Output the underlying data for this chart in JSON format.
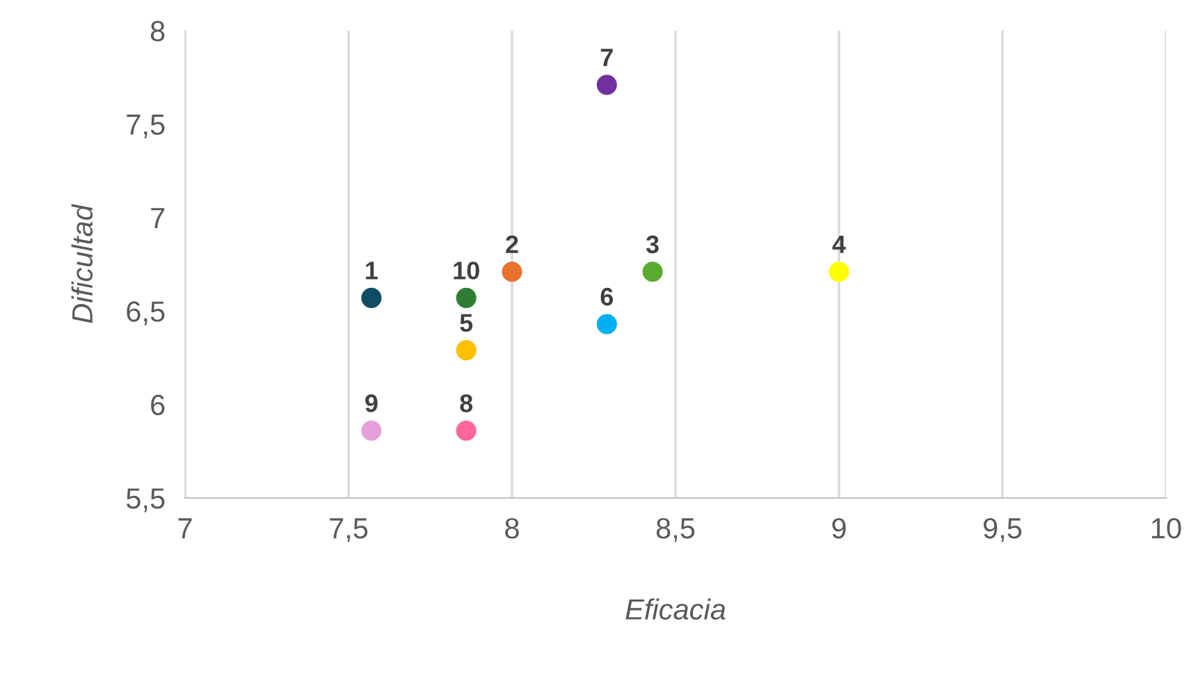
{
  "chart_data": {
    "type": "scatter",
    "xlabel": "Eficacia",
    "ylabel": "Dificultad",
    "series": [
      {
        "name": "1",
        "color": "#0e4d64",
        "x": [
          7.57
        ],
        "values": [
          6.57
        ]
      },
      {
        "name": "2",
        "color": "#e87330",
        "x": [
          8.0
        ],
        "values": [
          6.71
        ]
      },
      {
        "name": "3",
        "color": "#5aab30",
        "x": [
          8.43
        ],
        "values": [
          6.71
        ]
      },
      {
        "name": "4",
        "color": "#ffff00",
        "x": [
          9.0
        ],
        "values": [
          6.71
        ]
      },
      {
        "name": "5",
        "color": "#ffc000",
        "x": [
          7.86
        ],
        "values": [
          6.29
        ]
      },
      {
        "name": "6",
        "color": "#00b0f0",
        "x": [
          8.29
        ],
        "values": [
          6.43
        ]
      },
      {
        "name": "7",
        "color": "#7030a0",
        "x": [
          8.29
        ],
        "values": [
          7.71
        ]
      },
      {
        "name": "8",
        "color": "#ff6699",
        "x": [
          7.86
        ],
        "values": [
          5.86
        ]
      },
      {
        "name": "9",
        "color": "#e6a0dc",
        "x": [
          7.57
        ],
        "values": [
          5.86
        ]
      },
      {
        "name": "10",
        "color": "#2e7d32",
        "x": [
          7.86
        ],
        "values": [
          6.57
        ]
      }
    ],
    "xlim": [
      7,
      10
    ],
    "xticks": [
      {
        "value": 7,
        "label": "7"
      },
      {
        "value": 7.5,
        "label": "7,5"
      },
      {
        "value": 8,
        "label": "8"
      },
      {
        "value": 8.5,
        "label": "8,5"
      },
      {
        "value": 9,
        "label": "9"
      },
      {
        "value": 9.5,
        "label": "9,5"
      },
      {
        "value": 10,
        "label": "10"
      }
    ],
    "ylim": [
      5.5,
      8
    ],
    "yticks": [
      {
        "value": 5.5,
        "label": "5,5"
      },
      {
        "value": 6,
        "label": "6"
      },
      {
        "value": 6.5,
        "label": "6,5"
      },
      {
        "value": 7,
        "label": "7"
      },
      {
        "value": 7.5,
        "label": "7,5"
      },
      {
        "value": 8,
        "label": "8"
      }
    ],
    "grid": "x",
    "marker": "circle"
  }
}
